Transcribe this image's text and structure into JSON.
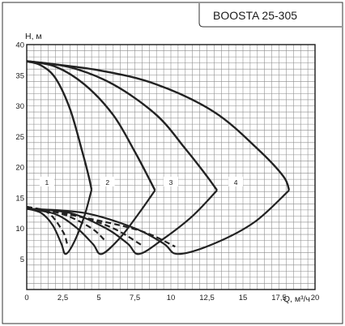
{
  "page": {
    "model_title": "BOOSTA 25-305"
  },
  "chart_data": {
    "type": "line",
    "title": "BOOSTA 25-305",
    "xlabel": "Q, м³/ч",
    "ylabel": "H, м",
    "xlim": [
      0,
      20
    ],
    "ylim": [
      0,
      40
    ],
    "x_tick_labels": [
      "0",
      "2,5",
      "5",
      "7,5",
      "10",
      "12,5",
      "15",
      "17,5",
      "20"
    ],
    "y_tick_labels": [
      "5",
      "10",
      "15",
      "20",
      "25",
      "30",
      "35",
      "40"
    ],
    "grid": true,
    "head_curves": [
      {
        "label": "1",
        "points": [
          [
            0,
            37.3
          ],
          [
            1,
            36.6
          ],
          [
            2,
            34.5
          ],
          [
            3,
            29.5
          ],
          [
            3.8,
            23
          ],
          [
            4.3,
            18.5
          ],
          [
            4.5,
            16.3
          ]
        ]
      },
      {
        "label": "2",
        "points": [
          [
            0,
            37.3
          ],
          [
            2,
            36.4
          ],
          [
            4,
            33.5
          ],
          [
            6,
            28.5
          ],
          [
            7.5,
            22.5
          ],
          [
            8.4,
            18.5
          ],
          [
            8.9,
            16.2
          ]
        ]
      },
      {
        "label": "3",
        "points": [
          [
            0,
            37.3
          ],
          [
            3,
            36.3
          ],
          [
            6,
            33.5
          ],
          [
            9,
            28.5
          ],
          [
            11,
            23
          ],
          [
            12.5,
            18.5
          ],
          [
            13.2,
            16.2
          ]
        ]
      },
      {
        "label": "4",
        "points": [
          [
            0,
            37.3
          ],
          [
            5,
            35.8
          ],
          [
            9,
            33.5
          ],
          [
            13,
            29
          ],
          [
            16,
            23
          ],
          [
            17.8,
            18.5
          ],
          [
            18.2,
            16.2
          ]
        ]
      }
    ],
    "power_curves": [
      {
        "label": "1",
        "points": [
          [
            0,
            13.2
          ],
          [
            1,
            12.5
          ],
          [
            1.8,
            10.5
          ],
          [
            2.4,
            7.5
          ],
          [
            2.7,
            5.8
          ],
          [
            3.3,
            7.8
          ],
          [
            4,
            12
          ],
          [
            4.5,
            16.3
          ]
        ]
      },
      {
        "label": "2",
        "points": [
          [
            0,
            13.2
          ],
          [
            2,
            12.3
          ],
          [
            3.5,
            10
          ],
          [
            4.6,
            7.4
          ],
          [
            5.2,
            5.8
          ],
          [
            6.5,
            8.5
          ],
          [
            7.8,
            12.5
          ],
          [
            8.9,
            16.2
          ]
        ]
      },
      {
        "label": "3",
        "points": [
          [
            0,
            13.2
          ],
          [
            3,
            12.5
          ],
          [
            5.5,
            10
          ],
          [
            7,
            7.5
          ],
          [
            7.8,
            5.8
          ],
          [
            9.5,
            8.3
          ],
          [
            11.5,
            12
          ],
          [
            13.2,
            16.2
          ]
        ]
      },
      {
        "label": "4",
        "points": [
          [
            0,
            13.2
          ],
          [
            4,
            12.5
          ],
          [
            7.5,
            10
          ],
          [
            9.5,
            7.5
          ],
          [
            10.5,
            5.8
          ],
          [
            13,
            7.5
          ],
          [
            15.8,
            11
          ],
          [
            18.2,
            16.2
          ]
        ]
      }
    ],
    "dashed_curves": [
      {
        "points": [
          [
            0,
            13.5
          ],
          [
            1.5,
            12.5
          ],
          [
            2.5,
            9.5
          ],
          [
            2.8,
            7.5
          ]
        ]
      },
      {
        "points": [
          [
            0,
            13.5
          ],
          [
            2.5,
            12.3
          ],
          [
            4.5,
            10
          ],
          [
            5.5,
            7.8
          ]
        ]
      },
      {
        "points": [
          [
            0,
            13.5
          ],
          [
            3.5,
            12
          ],
          [
            6,
            10
          ],
          [
            8,
            7.2
          ]
        ]
      },
      {
        "points": [
          [
            0,
            13.5
          ],
          [
            4.5,
            11.5
          ],
          [
            8,
            9.5
          ],
          [
            10.3,
            7
          ]
        ]
      }
    ],
    "curve_labels": [
      {
        "text": "1",
        "x": 1.4,
        "y": 17.5
      },
      {
        "text": "2",
        "x": 5.6,
        "y": 17.5
      },
      {
        "text": "3",
        "x": 10.0,
        "y": 17.5
      },
      {
        "text": "4",
        "x": 14.5,
        "y": 17.5
      }
    ]
  }
}
